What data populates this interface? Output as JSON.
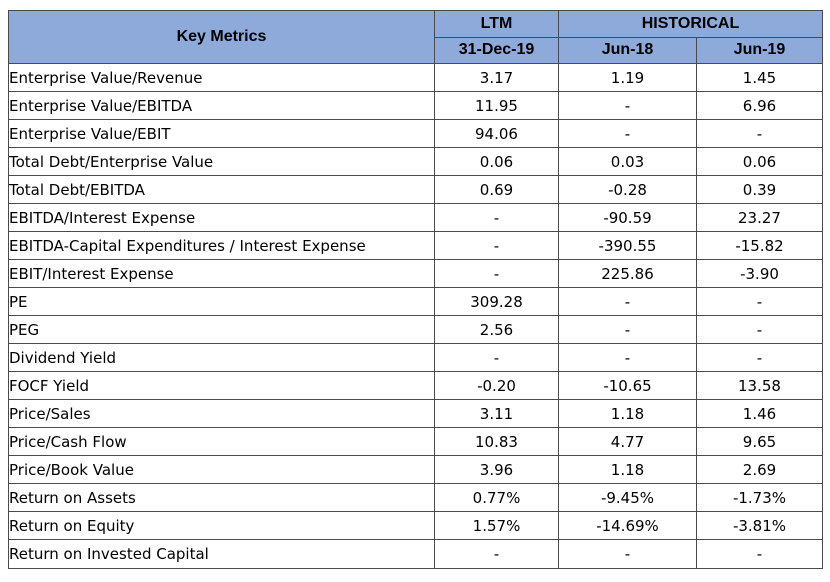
{
  "header": {
    "key_metrics": "Key Metrics",
    "ltm": "LTM",
    "historical": "HISTORICAL",
    "col_ltm_date": "31-Dec-19",
    "col_hist_1": "Jun-18",
    "col_hist_2": "Jun-19"
  },
  "rows": [
    {
      "label": "Enterprise Value/Revenue",
      "ltm": "3.17",
      "jun18": "1.19",
      "jun19": "1.45"
    },
    {
      "label": "Enterprise Value/EBITDA",
      "ltm": "11.95",
      "jun18": "-",
      "jun19": "6.96"
    },
    {
      "label": "Enterprise Value/EBIT",
      "ltm": "94.06",
      "jun18": "-",
      "jun19": "-"
    },
    {
      "label": "Total Debt/Enterprise Value",
      "ltm": "0.06",
      "jun18": "0.03",
      "jun19": "0.06"
    },
    {
      "label": "Total Debt/EBITDA",
      "ltm": "0.69",
      "jun18": "-0.28",
      "jun19": "0.39"
    },
    {
      "label": "EBITDA/Interest Expense",
      "ltm": "-",
      "jun18": "-90.59",
      "jun19": "23.27"
    },
    {
      "label": "EBITDA-Capital Expenditures / Interest Expense",
      "ltm": "-",
      "jun18": "-390.55",
      "jun19": "-15.82"
    },
    {
      "label": "EBIT/Interest Expense",
      "ltm": "-",
      "jun18": "225.86",
      "jun19": "-3.90"
    },
    {
      "label": "PE",
      "ltm": "309.28",
      "jun18": "-",
      "jun19": "-"
    },
    {
      "label": "PEG",
      "ltm": "2.56",
      "jun18": "-",
      "jun19": "-"
    },
    {
      "label": "Dividend Yield",
      "ltm": "-",
      "jun18": "-",
      "jun19": "-"
    },
    {
      "label": "FOCF Yield",
      "ltm": "-0.20",
      "jun18": "-10.65",
      "jun19": "13.58"
    },
    {
      "label": "Price/Sales",
      "ltm": "3.11",
      "jun18": "1.18",
      "jun19": "1.46"
    },
    {
      "label": "Price/Cash Flow",
      "ltm": "10.83",
      "jun18": "4.77",
      "jun19": "9.65"
    },
    {
      "label": "Price/Book Value",
      "ltm": "3.96",
      "jun18": "1.18",
      "jun19": "2.69"
    },
    {
      "label": "Return on Assets",
      "ltm": "0.77%",
      "jun18": "-9.45%",
      "jun19": "-1.73%"
    },
    {
      "label": "Return on Equity",
      "ltm": "1.57%",
      "jun18": "-14.69%",
      "jun19": "-3.81%"
    },
    {
      "label": "Return on Invested Capital",
      "ltm": "-",
      "jun18": "-",
      "jun19": "-"
    }
  ],
  "colors": {
    "header_fill": "#8eaadb",
    "border": "#4a4a4a"
  }
}
